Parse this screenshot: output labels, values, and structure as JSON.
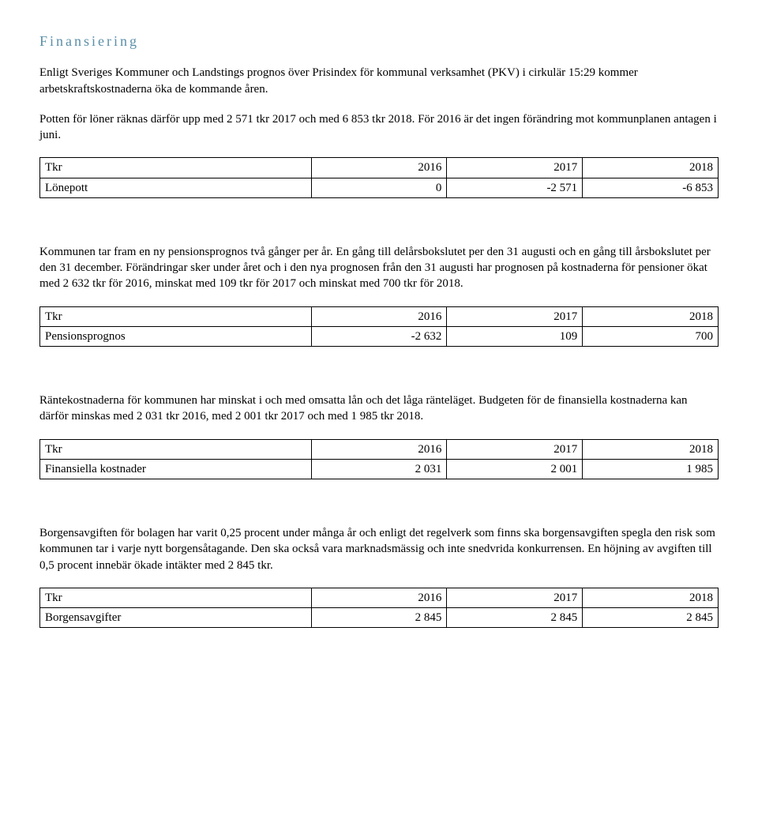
{
  "title": "Finansiering",
  "para1": "Enligt Sveriges Kommuner och Landstings prognos över Prisindex för kommunal verksamhet (PKV) i cirkulär 15:29 kommer arbetskraftskostnaderna öka de kommande åren.",
  "para2": "Potten för löner räknas därför upp med 2 571 tkr 2017 och med 6 853 tkr 2018. För 2016 är det ingen förändring mot kommunplanen antagen i juni.",
  "para3": "Kommunen tar fram en ny pensionsprognos två gånger per år. En gång till delårsbokslutet per den 31 augusti och en gång till årsbokslutet per den 31 december. Förändringar sker under året och i den nya prognosen från den 31 augusti har prognosen på kostnaderna för pensioner ökat med 2 632 tkr för 2016, minskat med 109 tkr för 2017 och minskat med 700 tkr för 2018.",
  "para4": "Räntekostnaderna för kommunen har minskat i och med omsatta lån och det låga ränteläget. Budgeten för de finansiella kostnaderna kan därför minskas med 2 031 tkr 2016, med 2 001 tkr 2017 och med 1 985 tkr 2018.",
  "para5": "Borgensavgiften för bolagen har varit 0,25 procent under många år och enligt det regelverk som finns ska borgensavgiften spegla den risk som kommunen tar i varje nytt borgensåtagande. Den ska också vara marknadsmässig och inte snedvrida konkurrensen. En höjning av avgiften till 0,5 procent innebär ökade intäkter med 2 845 tkr.",
  "headers": {
    "tkr": "Tkr",
    "y2016": "2016",
    "y2017": "2017",
    "y2018": "2018"
  },
  "table1": {
    "label": "Lönepott",
    "v2016": "0",
    "v2017": "-2 571",
    "v2018": "-6 853"
  },
  "table2": {
    "label": "Pensionsprognos",
    "v2016": "-2 632",
    "v2017": "109",
    "v2018": "700"
  },
  "table3": {
    "label": "Finansiella kostnader",
    "v2016": "2 031",
    "v2017": "2 001",
    "v2018": "1 985"
  },
  "table4": {
    "label": "Borgensavgifter",
    "v2016": "2 845",
    "v2017": "2 845",
    "v2018": "2 845"
  }
}
